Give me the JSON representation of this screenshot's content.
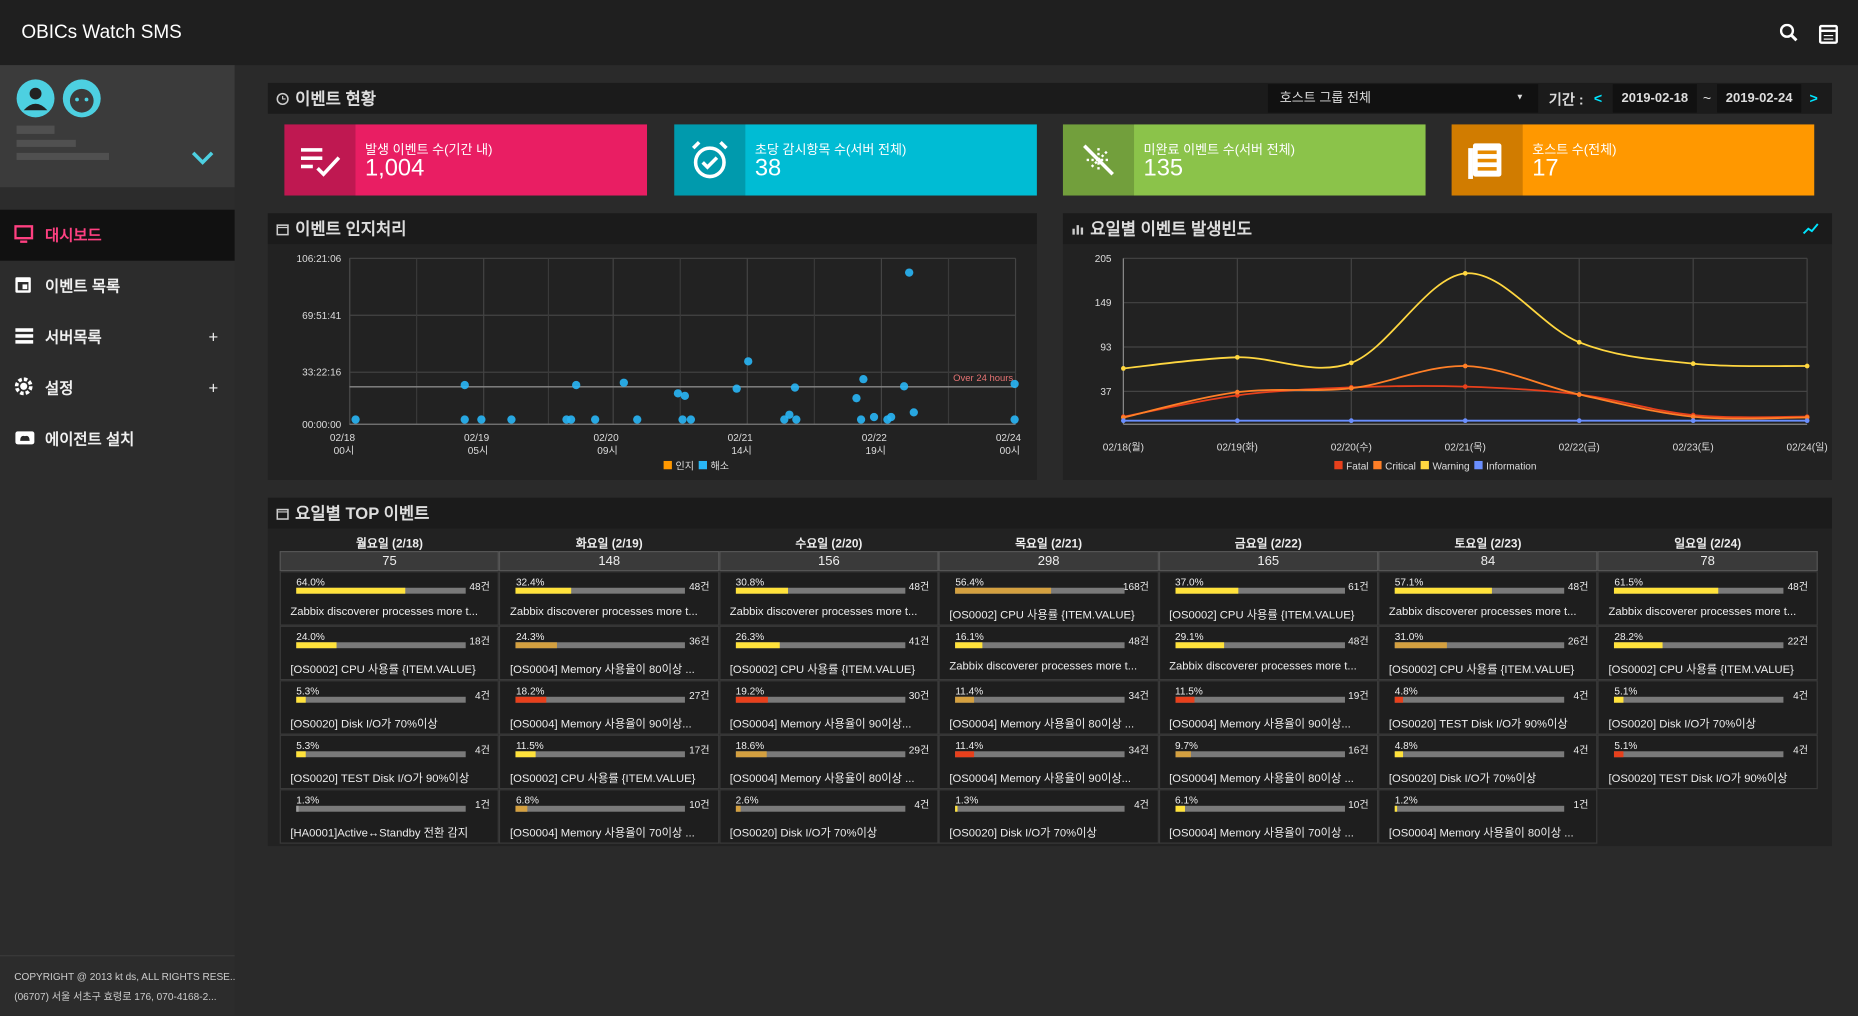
{
  "header": {
    "title": "OBICs Watch SMS"
  },
  "sidebar": {
    "menu": [
      {
        "label": "대시보드"
      },
      {
        "label": "이벤트 목록"
      },
      {
        "label": "서버목록"
      },
      {
        "label": "설정"
      },
      {
        "label": "에이전트 설치"
      }
    ],
    "footer": [
      "COPYRIGHT @ 2013 kt ds, ALL RIGHTS RESE...",
      "(06707) 서울 서초구 효령로 176, 070-4168-2..."
    ]
  },
  "event_status": {
    "title": "이벤트 현황",
    "host_group": "호스트 그룹 전체",
    "period_label": "기간 :",
    "start_date": "2019-02-18",
    "separator": "~",
    "end_date": "2019-02-24",
    "cards": [
      {
        "label": "발생 이벤트 수(기간 내)",
        "value": "1,004",
        "color": "#e91e63"
      },
      {
        "label": "초당 감시항목 수(서버 전체)",
        "value": "38",
        "color": "#00bcd4"
      },
      {
        "label": "미완료 이벤트 수(서버 전체)",
        "value": "135",
        "color": "#8bc34a"
      },
      {
        "label": "호스트 수(전체)",
        "value": "17",
        "color": "#ff9800"
      }
    ]
  },
  "chart_data": [
    {
      "type": "scatter",
      "title": "이벤트 인지처리",
      "xlim": [
        0,
        144
      ],
      "xticks": [
        {
          "value": 0,
          "label": "02/18 00시"
        },
        {
          "value": 29,
          "label": "02/19 05시"
        },
        {
          "value": 57,
          "label": "02/20 09시"
        },
        {
          "value": 86,
          "label": "02/21 14시"
        },
        {
          "value": 115,
          "label": "02/22 19시"
        },
        {
          "value": 144,
          "label": "02/24 00시"
        }
      ],
      "ylim": [
        0,
        106.3517
      ],
      "yticks": [
        {
          "value": 0,
          "label": "00:00:00"
        },
        {
          "value": 33.3711,
          "label": "33:22:16"
        },
        {
          "value": 69.8614,
          "label": "69:51:41"
        },
        {
          "value": 106.3517,
          "label": "106:21:06"
        }
      ],
      "grid": true,
      "legend": "bottom",
      "annotation": {
        "text": "Over 24 hours",
        "value": 24
      },
      "series": [
        {
          "name": "인지",
          "color": "#ff9800",
          "x": [],
          "values": []
        },
        {
          "name": "해소",
          "color": "#29b6f6",
          "x": [
            1.3,
            24.9,
            24.9,
            28.5,
            35.0,
            46.9,
            47.9,
            49.0,
            53.1,
            59.3,
            62.2,
            71.0,
            72.5,
            72.0,
            73.8,
            83.7,
            86.2,
            94.0,
            95.1,
            96.3,
            96.6,
            109.6,
            110.6,
            111.1,
            113.4,
            116.3,
            117.1,
            119.9,
            121.0,
            122.0,
            143.8,
            143.8
          ],
          "values": [
            3.0,
            25.1,
            3.0,
            3.0,
            3.0,
            3.0,
            3.0,
            25.1,
            3.0,
            26.6,
            3.0,
            19.8,
            18.2,
            3.0,
            3.0,
            22.8,
            40.3,
            3.0,
            6.1,
            23.5,
            3.0,
            16.7,
            3.0,
            28.9,
            4.6,
            3.0,
            4.6,
            24.3,
            97.2,
            7.6,
            25.8,
            3.0
          ]
        }
      ]
    },
    {
      "type": "line",
      "title": "요일별 이벤트 발생빈도",
      "categories": [
        "02/18(월)",
        "02/19(화)",
        "02/20(수)",
        "02/21(목)",
        "02/22(금)",
        "02/23(토)",
        "02/24(일)"
      ],
      "ylim": [
        0,
        205
      ],
      "yticks": [
        37,
        93,
        149,
        205
      ],
      "grid": true,
      "legend": "bottom",
      "series": [
        {
          "name": "Fatal",
          "color": "#e8401c",
          "values": [
            5,
            32,
            42,
            43,
            33,
            7,
            5
          ]
        },
        {
          "name": "Critical",
          "color": "#ff7f27",
          "values": [
            4,
            36,
            41,
            69,
            33,
            5,
            4
          ]
        },
        {
          "name": "Warning",
          "color": "#ffd740",
          "values": [
            66,
            80,
            73,
            186,
            99,
            72,
            69
          ]
        },
        {
          "name": "Information",
          "color": "#6a8fff",
          "values": [
            0,
            0,
            0,
            0,
            0,
            0,
            0
          ]
        }
      ]
    }
  ],
  "top_events": {
    "title": "요일별 TOP 이벤트",
    "days": [
      {
        "day": "월요일 (2/18)",
        "total": 75,
        "items": [
          {
            "percent": 64.0,
            "percent_label": "64.0%",
            "count_label": "48건",
            "name": "Zabbix discoverer processes more t...",
            "color": "#ffe23b"
          },
          {
            "percent": 24.0,
            "percent_label": "24.0%",
            "count_label": "18건",
            "name": "[OS0002] CPU 사용률 {ITEM.VALUE}",
            "color": "#ffe23b"
          },
          {
            "percent": 5.3,
            "percent_label": "5.3%",
            "count_label": "4건",
            "name": "[OS0020] Disk I/O가 70%이상",
            "color": "#ffe23b"
          },
          {
            "percent": 5.3,
            "percent_label": "5.3%",
            "count_label": "4건",
            "name": "[OS0020] TEST Disk I/O가 90%이상",
            "color": "#ffe23b"
          },
          {
            "percent": 1.3,
            "percent_label": "1.3%",
            "count_label": "1건",
            "name": "[HA0001]Active↔Standby 전환 감지",
            "color": "#9e9e9e"
          }
        ]
      },
      {
        "day": "화요일 (2/19)",
        "total": 148,
        "items": [
          {
            "percent": 32.4,
            "percent_label": "32.4%",
            "count_label": "48건",
            "name": "Zabbix discoverer processes more t...",
            "color": "#ffe23b"
          },
          {
            "percent": 24.3,
            "percent_label": "24.3%",
            "count_label": "36건",
            "name": "[OS0004] Memory 사용율이 80이상 ...",
            "color": "#d4a040"
          },
          {
            "percent": 18.2,
            "percent_label": "18.2%",
            "count_label": "27건",
            "name": "[OS0004] Memory 사용율이 90이상...",
            "color": "#e8401c"
          },
          {
            "percent": 11.5,
            "percent_label": "11.5%",
            "count_label": "17건",
            "name": "[OS0002] CPU 사용률 {ITEM.VALUE}",
            "color": "#ffe23b"
          },
          {
            "percent": 6.8,
            "percent_label": "6.8%",
            "count_label": "10건",
            "name": "[OS0004] Memory 사용율이 70이상 ...",
            "color": "#d4a040"
          }
        ]
      },
      {
        "day": "수요일 (2/20)",
        "total": 156,
        "items": [
          {
            "percent": 30.8,
            "percent_label": "30.8%",
            "count_label": "48건",
            "name": "Zabbix discoverer processes more t...",
            "color": "#ffe23b"
          },
          {
            "percent": 26.3,
            "percent_label": "26.3%",
            "count_label": "41건",
            "name": "[OS0002] CPU 사용률 {ITEM.VALUE}",
            "color": "#ffe23b"
          },
          {
            "percent": 19.2,
            "percent_label": "19.2%",
            "count_label": "30건",
            "name": "[OS0004] Memory 사용율이 90이상...",
            "color": "#e8401c"
          },
          {
            "percent": 18.6,
            "percent_label": "18.6%",
            "count_label": "29건",
            "name": "[OS0004] Memory 사용율이 80이상 ...",
            "color": "#d4a040"
          },
          {
            "percent": 2.6,
            "percent_label": "2.6%",
            "count_label": "4건",
            "name": "[OS0020] Disk I/O가 70%이상",
            "color": "#d4a040"
          }
        ]
      },
      {
        "day": "목요일 (2/21)",
        "total": 298,
        "items": [
          {
            "percent": 56.4,
            "percent_label": "56.4%",
            "count_label": "168건",
            "name": "[OS0002] CPU 사용률 {ITEM.VALUE}",
            "color": "#d4a040"
          },
          {
            "percent": 16.1,
            "percent_label": "16.1%",
            "count_label": "48건",
            "name": "Zabbix discoverer processes more t...",
            "color": "#ffe23b"
          },
          {
            "percent": 11.4,
            "percent_label": "11.4%",
            "count_label": "34건",
            "name": "[OS0004] Memory 사용율이 80이상 ...",
            "color": "#d4a040"
          },
          {
            "percent": 11.4,
            "percent_label": "11.4%",
            "count_label": "34건",
            "name": "[OS0004] Memory 사용율이 90이상...",
            "color": "#e8401c"
          },
          {
            "percent": 1.3,
            "percent_label": "1.3%",
            "count_label": "4건",
            "name": "[OS0020] Disk I/O가 70%이상",
            "color": "#ffe23b"
          }
        ]
      },
      {
        "day": "금요일 (2/22)",
        "total": 165,
        "items": [
          {
            "percent": 37.0,
            "percent_label": "37.0%",
            "count_label": "61건",
            "name": "[OS0002] CPU 사용률 {ITEM.VALUE}",
            "color": "#ffe23b"
          },
          {
            "percent": 29.1,
            "percent_label": "29.1%",
            "count_label": "48건",
            "name": "Zabbix discoverer processes more t...",
            "color": "#ffe23b"
          },
          {
            "percent": 11.5,
            "percent_label": "11.5%",
            "count_label": "19건",
            "name": "[OS0004] Memory 사용율이 90이상...",
            "color": "#e8401c"
          },
          {
            "percent": 9.7,
            "percent_label": "9.7%",
            "count_label": "16건",
            "name": "[OS0004] Memory 사용율이 80이상 ...",
            "color": "#d4a040"
          },
          {
            "percent": 6.1,
            "percent_label": "6.1%",
            "count_label": "10건",
            "name": "[OS0004] Memory 사용율이 70이상 ...",
            "color": "#ffe23b"
          }
        ]
      },
      {
        "day": "토요일 (2/23)",
        "total": 84,
        "items": [
          {
            "percent": 57.1,
            "percent_label": "57.1%",
            "count_label": "48건",
            "name": "Zabbix discoverer processes more t...",
            "color": "#ffe23b"
          },
          {
            "percent": 31.0,
            "percent_label": "31.0%",
            "count_label": "26건",
            "name": "[OS0002] CPU 사용률 {ITEM.VALUE}",
            "color": "#d4a040"
          },
          {
            "percent": 4.8,
            "percent_label": "4.8%",
            "count_label": "4건",
            "name": "[OS0020] TEST Disk I/O가 90%이상",
            "color": "#e8401c"
          },
          {
            "percent": 4.8,
            "percent_label": "4.8%",
            "count_label": "4건",
            "name": "[OS0020] Disk I/O가 70%이상",
            "color": "#ffe23b"
          },
          {
            "percent": 1.2,
            "percent_label": "1.2%",
            "count_label": "1건",
            "name": "[OS0004] Memory 사용율이 80이상 ...",
            "color": "#ffe23b"
          }
        ]
      },
      {
        "day": "일요일 (2/24)",
        "total": 78,
        "items": [
          {
            "percent": 61.5,
            "percent_label": "61.5%",
            "count_label": "48건",
            "name": "Zabbix discoverer processes more t...",
            "color": "#ffe23b"
          },
          {
            "percent": 28.2,
            "percent_label": "28.2%",
            "count_label": "22건",
            "name": "[OS0002] CPU 사용률 {ITEM.VALUE}",
            "color": "#ffe23b"
          },
          {
            "percent": 5.1,
            "percent_label": "5.1%",
            "count_label": "4건",
            "name": "[OS0020] Disk I/O가 70%이상",
            "color": "#ffe23b"
          },
          {
            "percent": 5.1,
            "percent_label": "5.1%",
            "count_label": "4건",
            "name": "[OS0020] TEST Disk I/O가 90%이상",
            "color": "#e8401c"
          }
        ]
      }
    ]
  }
}
